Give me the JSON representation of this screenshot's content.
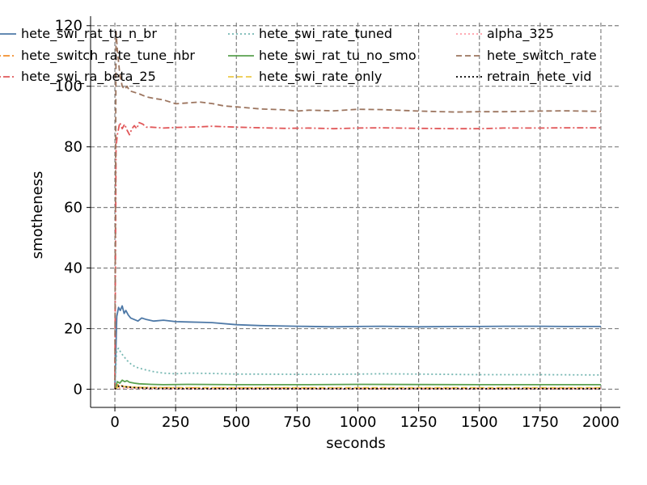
{
  "chart_data": {
    "type": "line",
    "title": "",
    "xlabel": "seconds",
    "ylabel": "smotheness",
    "xlim": [
      -100,
      2080
    ],
    "ylim": [
      -6,
      121
    ],
    "xticks": [
      0,
      250,
      500,
      750,
      1000,
      1250,
      1500,
      1750,
      2000
    ],
    "yticks": [
      0,
      20,
      40,
      60,
      80,
      100,
      120
    ],
    "grid": true,
    "legend_position": "top",
    "series": [
      {
        "name": "hete_swi_rat_tu_n_br",
        "color": "#4e79a7",
        "style": "solid",
        "x": [
          0,
          8,
          15,
          22,
          30,
          38,
          45,
          55,
          65,
          80,
          95,
          110,
          130,
          160,
          200,
          250,
          300,
          400,
          500,
          600,
          750,
          900,
          1000,
          1100,
          1250,
          1400,
          1500,
          1600,
          1750,
          1850,
          2000
        ],
        "y": [
          0,
          24,
          27,
          26,
          27.5,
          25,
          26,
          24.5,
          23.5,
          23,
          22.5,
          23.5,
          23,
          22.5,
          22.8,
          22.3,
          22.2,
          22,
          21.3,
          21,
          20.8,
          20.6,
          20.7,
          20.8,
          20.6,
          20.7,
          20.7,
          20.8,
          20.8,
          20.7,
          20.7
        ]
      },
      {
        "name": "hete_switch_rate_tune_nbr",
        "color": "#f28e2b",
        "style": "dashdot",
        "x": [
          0,
          10,
          25,
          50,
          100,
          200,
          400,
          700,
          1000,
          1500,
          2000
        ],
        "y": [
          0,
          1.5,
          1.2,
          0.8,
          0.6,
          0.5,
          0.4,
          0.35,
          0.3,
          0.3,
          0.3
        ]
      },
      {
        "name": "hete_swi_ra_beta_25",
        "color": "#e15759",
        "style": "dashdot",
        "x": [
          0,
          5,
          10,
          15,
          20,
          30,
          40,
          50,
          60,
          70,
          80,
          90,
          100,
          115,
          130,
          150,
          200,
          250,
          300,
          350,
          400,
          500,
          600,
          700,
          800,
          900,
          1000,
          1100,
          1250,
          1400,
          1500,
          1600,
          1750,
          1850,
          2000
        ],
        "y": [
          0,
          80,
          84,
          86,
          88,
          86,
          87.5,
          85.5,
          84,
          86,
          87,
          86,
          88,
          87.5,
          86.5,
          86.5,
          86.2,
          86.4,
          86.5,
          86.6,
          86.8,
          86.5,
          86.3,
          86.1,
          86.2,
          86,
          86.2,
          86.3,
          86.1,
          86,
          86,
          86.2,
          86.2,
          86.3,
          86.3
        ]
      },
      {
        "name": "hete_swi_rate_tuned",
        "color": "#76b7b2",
        "style": "dotted",
        "x": [
          0,
          8,
          15,
          25,
          35,
          50,
          70,
          90,
          120,
          160,
          200,
          250,
          300,
          400,
          500,
          600,
          750,
          900,
          1000,
          1100,
          1250,
          1500,
          1750,
          2000
        ],
        "y": [
          0,
          13,
          13.5,
          12,
          11,
          9.5,
          8,
          7.2,
          6.5,
          5.8,
          5.3,
          5.1,
          5.3,
          5.2,
          5,
          5,
          4.9,
          4.9,
          5,
          5.1,
          5,
          4.8,
          4.8,
          4.7
        ]
      },
      {
        "name": "hete_swi_rat_tu_no_smo",
        "color": "#59a14f",
        "style": "solid",
        "x": [
          0,
          10,
          20,
          30,
          40,
          50,
          60,
          80,
          100,
          150,
          200,
          300,
          500,
          800,
          1000,
          1500,
          2000
        ],
        "y": [
          0,
          2.5,
          2,
          3,
          2.5,
          2.8,
          2.3,
          2,
          1.8,
          1.6,
          1.5,
          1.6,
          1.5,
          1.5,
          1.6,
          1.5,
          1.5
        ]
      },
      {
        "name": "hete_swi_rate_only",
        "color": "#edc948",
        "style": "dashed",
        "x": [
          0,
          15,
          30,
          60,
          100,
          200,
          500,
          1000,
          1500,
          2000
        ],
        "y": [
          0,
          0.8,
          0.9,
          0.7,
          0.6,
          0.5,
          0.5,
          0.5,
          0.5,
          0.5
        ]
      },
      {
        "name": "alpha_325",
        "color": "#ff9da7",
        "style": "dotted",
        "x": [
          0,
          15,
          30,
          60,
          100,
          200,
          500,
          1000,
          1500,
          2000
        ],
        "y": [
          0,
          0.3,
          0.4,
          0.3,
          0.25,
          0.2,
          0.2,
          0.2,
          0.2,
          0.2
        ]
      },
      {
        "name": "hete_switch_rate",
        "color": "#9c755f",
        "style": "dashed",
        "x": [
          0,
          5,
          10,
          15,
          20,
          30,
          40,
          50,
          60,
          80,
          100,
          130,
          160,
          200,
          250,
          300,
          350,
          400,
          450,
          500,
          600,
          700,
          750,
          800,
          900,
          1000,
          1100,
          1250,
          1400,
          1500,
          1600,
          1750,
          1850,
          2000
        ],
        "y": [
          0,
          118,
          112,
          108,
          104,
          100,
          99,
          100,
          98.5,
          98,
          97.5,
          96.5,
          96,
          95.5,
          94.2,
          94.5,
          94.8,
          94.3,
          93.5,
          93.2,
          92.5,
          92.2,
          91.8,
          92.1,
          91.9,
          92.4,
          92.3,
          91.8,
          91.5,
          91.6,
          91.6,
          91.8,
          91.9,
          91.7
        ]
      },
      {
        "name": "retrain_hete_vid",
        "color": "#000000",
        "style": "dotted",
        "x": [
          0,
          10,
          20,
          40,
          80,
          150,
          300,
          600,
          1000,
          1500,
          2000
        ],
        "y": [
          0,
          0.8,
          1.2,
          0.8,
          0.5,
          0.3,
          0.2,
          0.2,
          0.2,
          0.2,
          0.2
        ]
      }
    ]
  }
}
